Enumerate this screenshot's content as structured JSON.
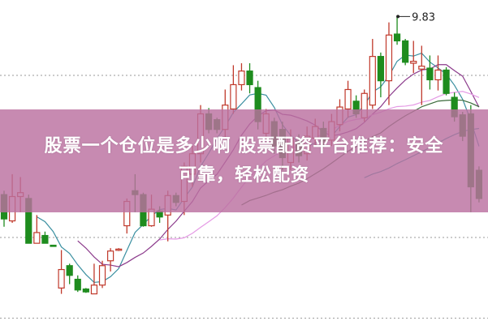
{
  "title_overlay": {
    "line1": "股票一个仓位是多少啊 股票配资平台推荐：安全",
    "line2": "可靠，轻松配资",
    "background": "#bb70a0"
  },
  "chart_data": {
    "type": "candlestick",
    "title": "",
    "xlabel": "",
    "ylabel": "",
    "ylim": [
      6.66,
      10.0
    ],
    "grid": "horizontal dotted",
    "up_color": "#c0392b",
    "down_color": "#1e8c1e",
    "annotations": [
      {
        "label": "9.83",
        "type": "max-high"
      }
    ],
    "moving_averages": [
      {
        "period": 5,
        "color": "#3a8fa0"
      },
      {
        "period": 10,
        "color": "#8b3a8b"
      },
      {
        "period": 20,
        "color": "#e59ae5"
      },
      {
        "period": 30,
        "color": "#3a6a3a"
      },
      {
        "period": 45,
        "color": "#2a9a9a"
      }
    ],
    "candles": [
      [
        8.0,
        7.75,
        8.04,
        7.67
      ],
      [
        7.73,
        7.98,
        8.21,
        7.71
      ],
      [
        7.98,
        8.02,
        8.18,
        7.82
      ],
      [
        7.96,
        7.5,
        8.0,
        7.5
      ],
      [
        7.5,
        7.61,
        7.79,
        7.5
      ],
      [
        7.58,
        7.5,
        7.62,
        7.5
      ],
      [
        7.48,
        7.47,
        7.48,
        7.47
      ],
      [
        7.04,
        7.23,
        7.43,
        6.98
      ],
      [
        7.27,
        7.17,
        7.29,
        7.08
      ],
      [
        7.13,
        7.02,
        7.17,
        7.0
      ],
      [
        7.03,
        7.0,
        7.04,
        6.99
      ],
      [
        6.98,
        7.07,
        7.29,
        6.98
      ],
      [
        7.07,
        7.27,
        7.32,
        7.04
      ],
      [
        7.32,
        7.42,
        7.45,
        7.21
      ],
      [
        7.43,
        7.44,
        7.45,
        7.42
      ],
      [
        7.68,
        7.93,
        7.96,
        7.6
      ],
      [
        8.04,
        8.0,
        8.21,
        7.82
      ],
      [
        8.0,
        7.68,
        8.02,
        7.67
      ],
      [
        7.68,
        7.85,
        8.0,
        7.67
      ],
      [
        7.83,
        7.77,
        7.88,
        7.71
      ],
      [
        7.79,
        7.99,
        8.04,
        7.52
      ],
      [
        7.99,
        7.92,
        8.02,
        7.88
      ],
      [
        7.93,
        8.29,
        8.33,
        7.79
      ],
      [
        8.21,
        8.42,
        8.5,
        8.08
      ],
      [
        8.42,
        8.83,
        8.92,
        8.33
      ],
      [
        8.83,
        8.67,
        8.89,
        8.63
      ],
      [
        8.77,
        8.67,
        8.79,
        8.63
      ],
      [
        8.67,
        8.92,
        9.08,
        8.58
      ],
      [
        8.88,
        9.13,
        9.33,
        8.83
      ],
      [
        9.13,
        9.27,
        9.35,
        9.07
      ],
      [
        9.27,
        9.13,
        9.35,
        9.04
      ],
      [
        9.1,
        8.75,
        9.17,
        8.67
      ],
      [
        8.63,
        8.83,
        8.88,
        8.57
      ],
      [
        8.75,
        8.5,
        8.79,
        8.42
      ],
      [
        8.67,
        8.38,
        8.75,
        8.25
      ],
      [
        8.33,
        8.58,
        8.67,
        8.25
      ],
      [
        8.55,
        8.4,
        8.62,
        8.33
      ],
      [
        8.42,
        8.6,
        8.7,
        8.35
      ],
      [
        8.58,
        8.7,
        8.78,
        8.5
      ],
      [
        8.68,
        8.55,
        8.75,
        8.48
      ],
      [
        8.56,
        8.75,
        8.83,
        8.5
      ],
      [
        8.72,
        8.9,
        8.98,
        8.65
      ],
      [
        8.88,
        9.08,
        9.17,
        8.79
      ],
      [
        8.96,
        8.83,
        9.02,
        8.79
      ],
      [
        8.79,
        9.04,
        9.08,
        8.75
      ],
      [
        8.92,
        9.42,
        9.6,
        8.88
      ],
      [
        9.42,
        9.17,
        9.46,
        9.0
      ],
      [
        9.17,
        9.64,
        9.77,
        8.92
      ],
      [
        9.65,
        9.58,
        9.83,
        9.54
      ],
      [
        9.58,
        9.36,
        9.6,
        9.33
      ],
      [
        9.35,
        9.37,
        9.58,
        9.25
      ],
      [
        9.29,
        9.32,
        9.53,
        8.92
      ],
      [
        9.3,
        9.18,
        9.43,
        9.08
      ],
      [
        9.18,
        9.28,
        9.43,
        9.07
      ],
      [
        9.28,
        9.04,
        9.31,
        9.02
      ],
      [
        9.0,
        8.8,
        9.05,
        8.75
      ],
      [
        8.82,
        8.6,
        8.85,
        8.55
      ],
      [
        8.83,
        8.08,
        8.92,
        7.82
      ],
      [
        8.25,
        7.96,
        8.29,
        7.92
      ]
    ]
  }
}
